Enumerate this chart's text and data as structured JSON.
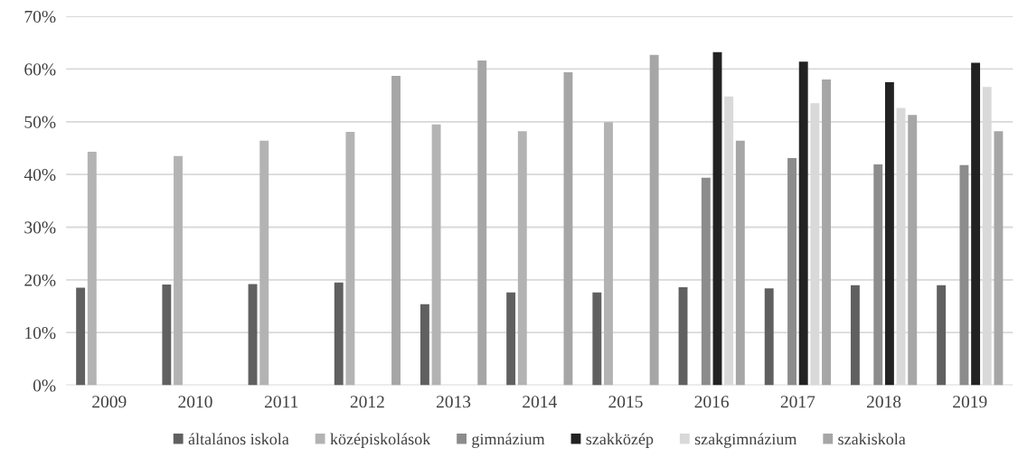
{
  "chart_data": {
    "type": "bar",
    "categories": [
      "2009",
      "2010",
      "2011",
      "2012",
      "2013",
      "2014",
      "2015",
      "2016",
      "2017",
      "2018",
      "2019"
    ],
    "series": [
      {
        "name": "általános iskola",
        "color": "#606060",
        "values": [
          18.5,
          19.1,
          19.2,
          19.5,
          15.4,
          17.6,
          17.6,
          18.6,
          18.4,
          19.0,
          19.0
        ]
      },
      {
        "name": "középiskolások",
        "color": "#b3b3b3",
        "values": [
          44.3,
          43.5,
          46.4,
          48.1,
          49.5,
          48.2,
          49.9,
          null,
          null,
          null,
          null
        ]
      },
      {
        "name": "gimnázium",
        "color": "#8c8c8c",
        "values": [
          null,
          null,
          null,
          null,
          null,
          null,
          null,
          39.4,
          43.1,
          41.9,
          41.8
        ]
      },
      {
        "name": "szakközép",
        "color": "#222222",
        "values": [
          null,
          null,
          null,
          null,
          null,
          null,
          null,
          63.2,
          61.4,
          57.5,
          61.2
        ]
      },
      {
        "name": "szakgimnázium",
        "color": "#d9d9d9",
        "values": [
          null,
          null,
          null,
          null,
          null,
          null,
          null,
          54.8,
          53.5,
          52.6,
          56.6
        ]
      },
      {
        "name": "szakiskola",
        "color": "#a6a6a6",
        "values": [
          null,
          null,
          null,
          58.7,
          61.6,
          59.4,
          62.7,
          46.4,
          58.0,
          51.3,
          48.2
        ]
      }
    ],
    "ylim": [
      0,
      70
    ],
    "yticks": [
      {
        "value": 0,
        "label": "0%"
      },
      {
        "value": 10,
        "label": "10%"
      },
      {
        "value": 20,
        "label": "20%"
      },
      {
        "value": 30,
        "label": "30%"
      },
      {
        "value": 40,
        "label": "40%"
      },
      {
        "value": 50,
        "label": "50%"
      },
      {
        "value": 60,
        "label": "60%"
      },
      {
        "value": 70,
        "label": "70%"
      }
    ],
    "grid": "y",
    "legend": "bottom"
  }
}
